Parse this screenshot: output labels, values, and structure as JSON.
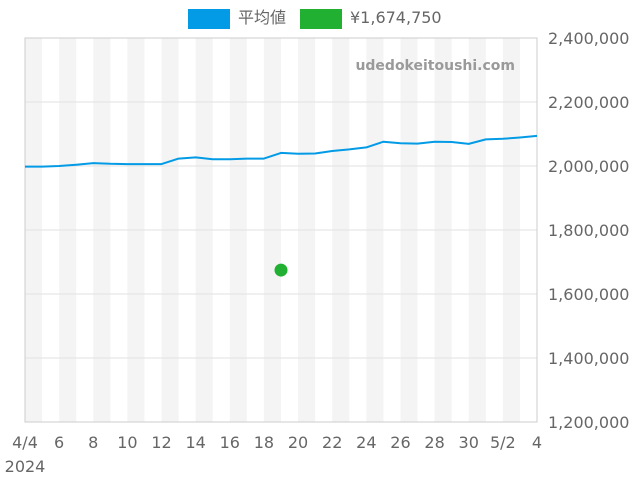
{
  "chart_data": {
    "type": "line",
    "watermark": "udedokeitoushi.com",
    "x_start_label": "2024",
    "x_ticks": [
      "4/4",
      "6",
      "8",
      "10",
      "12",
      "14",
      "16",
      "18",
      "20",
      "22",
      "24",
      "26",
      "28",
      "30",
      "5/2",
      "4"
    ],
    "y_ticks": [
      "2,400,000",
      "2,200,000",
      "2,000,000",
      "1,800,000",
      "1,600,000",
      "1,400,000",
      "1,200,000"
    ],
    "ylim": [
      1200000,
      2400000
    ],
    "xlim": [
      "2024-04-04",
      "2024-05-04"
    ],
    "grid": true,
    "legend_position": "top-center",
    "series": [
      {
        "name": "平均値",
        "kind": "line",
        "color": "#039be5",
        "x": [
          "2024-04-04",
          "2024-04-05",
          "2024-04-06",
          "2024-04-07",
          "2024-04-08",
          "2024-04-09",
          "2024-04-10",
          "2024-04-11",
          "2024-04-12",
          "2024-04-13",
          "2024-04-14",
          "2024-04-15",
          "2024-04-16",
          "2024-04-17",
          "2024-04-18",
          "2024-04-19",
          "2024-04-20",
          "2024-04-21",
          "2024-04-22",
          "2024-04-23",
          "2024-04-24",
          "2024-04-25",
          "2024-04-26",
          "2024-04-27",
          "2024-04-28",
          "2024-04-29",
          "2024-04-30",
          "2024-05-01",
          "2024-05-02",
          "2024-05-03",
          "2024-05-04"
        ],
        "y": [
          1998000,
          1998000,
          2000000,
          2004000,
          2009000,
          2007000,
          2006000,
          2006000,
          2006000,
          2023000,
          2027000,
          2021000,
          2021000,
          2023000,
          2023000,
          2041000,
          2038000,
          2039000,
          2047000,
          2052000,
          2058000,
          2076000,
          2071000,
          2070000,
          2076000,
          2075000,
          2069000,
          2083000,
          2085000,
          2089000,
          2094000
        ]
      },
      {
        "name": "¥1,674,750",
        "kind": "point",
        "color": "#22b033",
        "x": [
          "2024-04-19"
        ],
        "y": [
          1674750
        ]
      }
    ]
  }
}
